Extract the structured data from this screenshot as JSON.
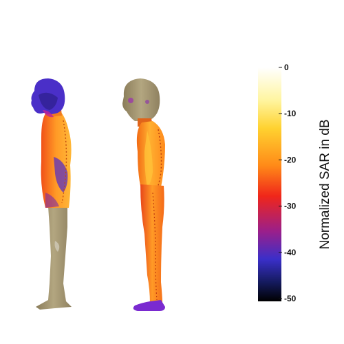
{
  "figures": [
    {
      "name": "figure-child-left",
      "exposure": "upper-body"
    },
    {
      "name": "figure-child-right",
      "exposure": "full-body"
    }
  ],
  "colorbar": {
    "title": "Normalized SAR in dB",
    "min": -50,
    "max": 0,
    "ticks": [
      "0",
      "-10",
      "-20",
      "-30",
      "-40",
      "-50"
    ],
    "colormap": "hot-to-cold (white → yellow → orange → red → purple → blue → black)",
    "stops": [
      "#ffffff",
      "#fff27a",
      "#ffc22a",
      "#ff7a14",
      "#f0261a",
      "#9b1f8a",
      "#3a2fc9",
      "#141a5c",
      "#000000"
    ]
  },
  "colors": {
    "skin": "#9d8f6a",
    "hot": "#ff8a1c",
    "warm": "#ffb030",
    "cool": "#5a2fc0"
  }
}
